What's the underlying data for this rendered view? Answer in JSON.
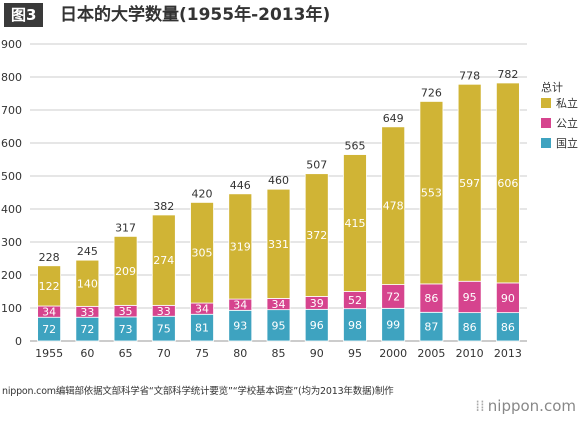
{
  "header": {
    "figure_label": "图3",
    "title": "日本的大学数量(1955年-2013年)"
  },
  "footer": {
    "source": "nippon.com编辑部依据文部科学省“文部科学统计要览”“学校基本调查”(均为2013年数据)制作",
    "brand": "nippon.com",
    "brand_mark": "⁞⁞"
  },
  "colors": {
    "national": "#3ea3c0",
    "public": "#d6448e",
    "private": "#d0b435",
    "grid": "#cccccc",
    "axis": "#999999"
  },
  "chart_data": {
    "type": "bar",
    "stacked": true,
    "categories": [
      "1955",
      "60",
      "65",
      "70",
      "75",
      "80",
      "85",
      "90",
      "95",
      "2000",
      "2005",
      "2010",
      "2013"
    ],
    "series": [
      {
        "name": "国立",
        "values": [
          72,
          72,
          73,
          75,
          81,
          93,
          95,
          96,
          98,
          99,
          87,
          86,
          86
        ]
      },
      {
        "name": "公立",
        "values": [
          34,
          33,
          35,
          33,
          34,
          34,
          34,
          39,
          52,
          72,
          86,
          95,
          90
        ]
      },
      {
        "name": "私立",
        "values": [
          122,
          140,
          209,
          274,
          305,
          319,
          331,
          372,
          415,
          478,
          553,
          597,
          606
        ]
      }
    ],
    "totals": [
      228,
      245,
      317,
      382,
      420,
      446,
      460,
      507,
      565,
      649,
      726,
      778,
      782
    ],
    "legend_title": "总计",
    "legend_placement": "right",
    "y_ticks": [
      0,
      100,
      200,
      300,
      400,
      500,
      600,
      700,
      800,
      900
    ],
    "ylim": [
      0,
      900
    ],
    "grid": true
  }
}
